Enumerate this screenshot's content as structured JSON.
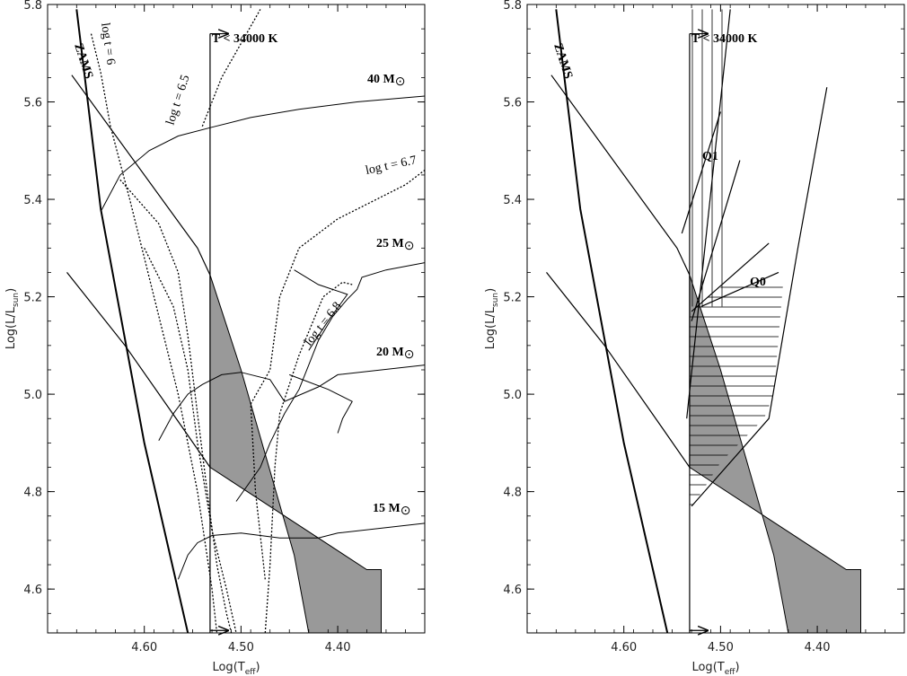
{
  "chart_data": [
    {
      "type": "line",
      "panel": "left",
      "xlabel": "Log(T",
      "xlabel_sub": "eff",
      "xlabel_close": ")",
      "ylabel": "Log(L/L",
      "ylabel_sub": "sun",
      "ylabel_close": ")",
      "xlim": [
        4.7,
        4.31
      ],
      "ylim": [
        4.51,
        5.8
      ],
      "x_ticks": [
        4.6,
        4.5,
        4.4
      ],
      "x_tick_labels": [
        "4.60",
        "4.50",
        "4.40"
      ],
      "y_ticks": [
        4.6,
        4.8,
        5.0,
        5.2,
        5.4,
        5.6,
        5.8
      ],
      "y_tick_labels": [
        "4.6",
        "4.8",
        "5.0",
        "5.2",
        "5.4",
        "5.6",
        "5.8"
      ],
      "annotations": {
        "zams": "ZAMS",
        "temp_cut": "T < 34000 K",
        "iso_6": "log t = 6",
        "iso_65": "log t = 6.5",
        "iso_67": "log t = 6.7",
        "iso_68": "log t = 6.8",
        "m40": "40 M",
        "m25": "25 M",
        "m20": "20 M",
        "m15": "15 M",
        "sun": "⊙"
      },
      "zams": [
        [
          4.67,
          5.79
        ],
        [
          4.645,
          5.38
        ],
        [
          4.6,
          4.9
        ],
        [
          4.555,
          4.51
        ]
      ],
      "temp_cut_line": [
        [
          4.532,
          4.51
        ],
        [
          4.532,
          5.74
        ]
      ],
      "shaded_region": [
        [
          4.532,
          5.245
        ],
        [
          4.532,
          4.85
        ],
        [
          4.37,
          4.64
        ],
        [
          4.355,
          4.64
        ],
        [
          4.355,
          4.51
        ],
        [
          4.43,
          4.51
        ],
        [
          4.445,
          4.67
        ],
        [
          4.5,
          5.05
        ]
      ],
      "tracks": [
        {
          "mass": "40",
          "points": [
            [
              4.645,
              5.375
            ],
            [
              4.625,
              5.45
            ],
            [
              4.595,
              5.5
            ],
            [
              4.565,
              5.53
            ],
            [
              4.53,
              5.548
            ],
            [
              4.49,
              5.568
            ],
            [
              4.44,
              5.585
            ],
            [
              4.38,
              5.6
            ],
            [
              4.31,
              5.612
            ]
          ]
        },
        {
          "mass": "25",
          "points": [
            [
              4.505,
              4.78
            ],
            [
              4.48,
              4.85
            ],
            [
              4.47,
              4.9
            ],
            [
              4.455,
              4.96
            ],
            [
              4.44,
              5.01
            ],
            [
              4.43,
              5.06
            ],
            [
              4.42,
              5.11
            ],
            [
              4.405,
              5.16
            ],
            [
              4.39,
              5.195
            ],
            [
              4.38,
              5.215
            ],
            [
              4.375,
              5.24
            ],
            [
              4.35,
              5.255
            ],
            [
              4.31,
              5.27
            ]
          ]
        },
        {
          "mass": "25-loop",
          "points": [
            [
              4.445,
              5.255
            ],
            [
              4.42,
              5.225
            ],
            [
              4.39,
              5.205
            ],
            [
              4.41,
              5.15
            ],
            [
              4.43,
              5.09
            ]
          ]
        },
        {
          "mass": "20",
          "points": [
            [
              4.585,
              4.905
            ],
            [
              4.57,
              4.96
            ],
            [
              4.555,
              5.0
            ],
            [
              4.54,
              5.02
            ],
            [
              4.52,
              5.04
            ],
            [
              4.5,
              5.045
            ],
            [
              4.47,
              5.03
            ],
            [
              4.455,
              4.985
            ],
            [
              4.42,
              5.015
            ],
            [
              4.4,
              5.04
            ],
            [
              4.31,
              5.06
            ]
          ]
        },
        {
          "mass": "20-loop",
          "points": [
            [
              4.45,
              5.04
            ],
            [
              4.41,
              5.01
            ],
            [
              4.385,
              4.985
            ],
            [
              4.395,
              4.95
            ],
            [
              4.4,
              4.92
            ]
          ]
        },
        {
          "mass": "15",
          "points": [
            [
              4.565,
              4.62
            ],
            [
              4.555,
              4.67
            ],
            [
              4.545,
              4.695
            ],
            [
              4.53,
              4.71
            ],
            [
              4.5,
              4.715
            ],
            [
              4.46,
              4.705
            ],
            [
              4.42,
              4.705
            ],
            [
              4.4,
              4.715
            ],
            [
              4.31,
              4.735
            ]
          ]
        }
      ],
      "straight_lines": [
        [
          [
            4.675,
            5.655
          ],
          [
            4.545,
            5.3
          ],
          [
            4.532,
            5.245
          ]
        ],
        [
          [
            4.68,
            5.25
          ],
          [
            4.62,
            5.1
          ],
          [
            4.56,
            4.93
          ],
          [
            4.532,
            4.85
          ]
        ]
      ],
      "isochrones": [
        {
          "label": "6",
          "points": [
            [
              4.655,
              5.74
            ],
            [
              4.645,
              5.66
            ],
            [
              4.635,
              5.55
            ],
            [
              4.615,
              5.4
            ],
            [
              4.59,
              5.2
            ],
            [
              4.565,
              5.0
            ],
            [
              4.545,
              4.8
            ],
            [
              4.53,
              4.6
            ],
            [
              4.525,
              4.51
            ]
          ]
        },
        {
          "label": "6.5",
          "points": [
            [
              4.625,
              5.44
            ],
            [
              4.585,
              5.35
            ],
            [
              4.565,
              5.25
            ],
            [
              4.555,
              5.12
            ],
            [
              4.545,
              4.96
            ],
            [
              4.535,
              4.8
            ],
            [
              4.525,
              4.65
            ],
            [
              4.515,
              4.55
            ],
            [
              4.51,
              4.51
            ]
          ]
        },
        {
          "label": "6.5b",
          "points": [
            [
              4.6,
              5.3
            ],
            [
              4.57,
              5.18
            ],
            [
              4.555,
              5.05
            ],
            [
              4.545,
              4.9
            ],
            [
              4.53,
              4.72
            ],
            [
              4.515,
              4.6
            ],
            [
              4.505,
              4.51
            ]
          ]
        },
        {
          "label": "6.7",
          "points": [
            [
              4.54,
              5.55
            ],
            [
              4.52,
              5.65
            ],
            [
              4.5,
              5.72
            ],
            [
              4.48,
              5.79
            ]
          ]
        },
        {
          "label": "6.7b",
          "points": [
            [
              4.475,
              4.62
            ],
            [
              4.485,
              4.8
            ],
            [
              4.49,
              4.98
            ],
            [
              4.47,
              5.05
            ],
            [
              4.46,
              5.2
            ],
            [
              4.44,
              5.3
            ],
            [
              4.4,
              5.36
            ],
            [
              4.36,
              5.4
            ],
            [
              4.33,
              5.43
            ],
            [
              4.31,
              5.46
            ]
          ]
        },
        {
          "label": "6.8",
          "points": [
            [
              4.475,
              4.51
            ],
            [
              4.47,
              4.65
            ],
            [
              4.465,
              4.85
            ],
            [
              4.46,
              4.96
            ],
            [
              4.44,
              5.08
            ],
            [
              4.415,
              5.2
            ],
            [
              4.395,
              5.23
            ],
            [
              4.385,
              5.225
            ]
          ]
        }
      ]
    },
    {
      "type": "line",
      "panel": "right",
      "xlabel": "Log(T",
      "xlabel_sub": "eff",
      "xlabel_close": ")",
      "ylabel": "Log(L/L",
      "ylabel_sub": "sun",
      "ylabel_close": ")",
      "xlim": [
        4.7,
        4.31
      ],
      "ylim": [
        4.51,
        5.8
      ],
      "x_ticks": [
        4.6,
        4.5,
        4.4
      ],
      "x_tick_labels": [
        "4.60",
        "4.50",
        "4.40"
      ],
      "y_ticks": [
        4.6,
        4.8,
        5.0,
        5.2,
        5.4,
        5.6,
        5.8
      ],
      "y_tick_labels": [
        "4.6",
        "4.8",
        "5.0",
        "5.2",
        "5.4",
        "5.6",
        "5.8"
      ],
      "annotations": {
        "zams": "ZAMS",
        "temp_cut": "T < 34000 K",
        "q1": "Q1",
        "q0": "Q0"
      },
      "zams": [
        [
          4.67,
          5.79
        ],
        [
          4.645,
          5.38
        ],
        [
          4.6,
          4.9
        ],
        [
          4.555,
          4.51
        ]
      ],
      "temp_cut_line": [
        [
          4.532,
          4.51
        ],
        [
          4.532,
          5.74
        ]
      ],
      "shaded_region": [
        [
          4.532,
          5.245
        ],
        [
          4.532,
          4.85
        ],
        [
          4.37,
          4.64
        ],
        [
          4.355,
          4.64
        ],
        [
          4.355,
          4.51
        ],
        [
          4.43,
          4.51
        ],
        [
          4.445,
          4.67
        ],
        [
          4.5,
          5.05
        ]
      ],
      "straight_lines": [
        [
          [
            4.675,
            5.655
          ],
          [
            4.545,
            5.3
          ],
          [
            4.532,
            5.245
          ]
        ],
        [
          [
            4.68,
            5.25
          ],
          [
            4.62,
            5.1
          ],
          [
            4.56,
            4.93
          ],
          [
            4.532,
            4.85
          ]
        ],
        [
          [
            4.535,
            4.95
          ],
          [
            4.49,
            5.79
          ]
        ],
        [
          [
            4.54,
            5.33
          ],
          [
            4.5,
            5.58
          ]
        ],
        [
          [
            4.53,
            5.15
          ],
          [
            4.48,
            5.48
          ]
        ],
        [
          [
            4.53,
            4.77
          ],
          [
            4.45,
            4.95
          ],
          [
            4.42,
            5.3
          ],
          [
            4.39,
            5.63
          ]
        ],
        [
          [
            4.53,
            5.17
          ],
          [
            4.45,
            5.31
          ]
        ],
        [
          [
            4.52,
            5.18
          ],
          [
            4.44,
            5.25
          ]
        ]
      ],
      "q1_region": {
        "x": [
          4.532,
          4.49
        ],
        "y": [
          5.18,
          5.79
        ]
      },
      "q0_region": {
        "poly": [
          [
            4.532,
            4.76
          ],
          [
            4.532,
            5.17
          ],
          [
            4.49,
            5.235
          ],
          [
            4.435,
            5.235
          ],
          [
            4.445,
            5.0
          ],
          [
            4.455,
            4.95
          ],
          [
            4.5,
            4.86
          ]
        ]
      }
    }
  ]
}
